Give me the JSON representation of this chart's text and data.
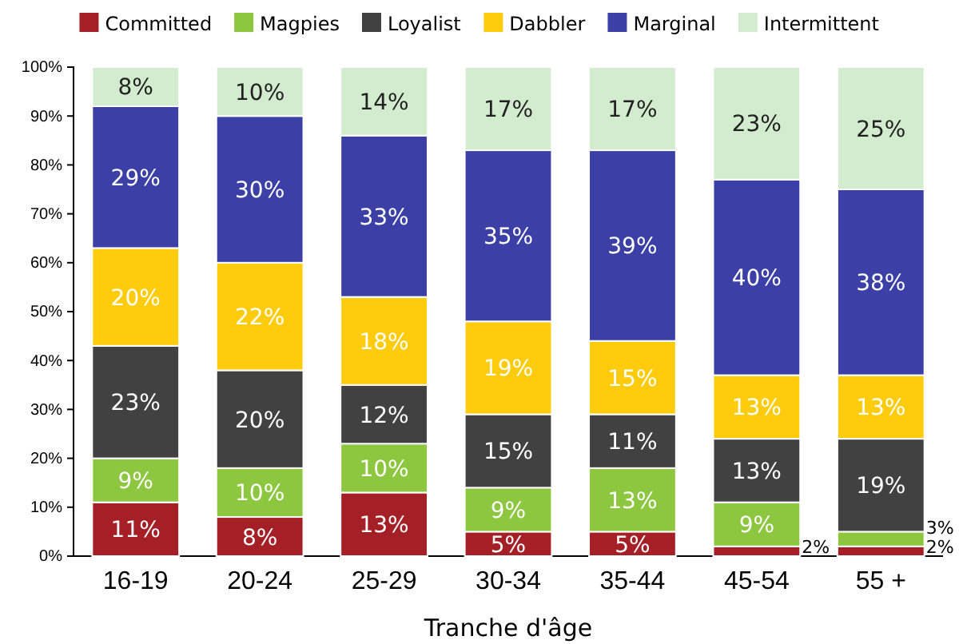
{
  "chart_data": {
    "type": "bar",
    "stacked": true,
    "xlabel": "Tranche d'âge",
    "categories": [
      "16-19",
      "20-24",
      "25-29",
      "30-34",
      "35-44",
      "45-54",
      "55 +"
    ],
    "ylim": [
      0,
      100
    ],
    "yticks": [
      {
        "value": 0,
        "label": "0%"
      },
      {
        "value": 10,
        "label": "10%"
      },
      {
        "value": 20,
        "label": "20%"
      },
      {
        "value": 30,
        "label": "30%"
      },
      {
        "value": 40,
        "label": "40%"
      },
      {
        "value": 50,
        "label": "50%"
      },
      {
        "value": 60,
        "label": "60%"
      },
      {
        "value": 70,
        "label": "70%"
      },
      {
        "value": 80,
        "label": "80%"
      },
      {
        "value": 90,
        "label": "90%"
      },
      {
        "value": 100,
        "label": "100%"
      }
    ],
    "legend": "top",
    "grid": false,
    "series": [
      {
        "name": "Committed",
        "color": "#a51f26",
        "values": [
          11,
          8,
          13,
          5,
          5,
          2,
          2
        ],
        "value_labels": [
          "11%",
          "8%",
          "13%",
          "5%",
          "5%",
          "2%",
          "2%"
        ]
      },
      {
        "name": "Magpies",
        "color": "#8dc63f",
        "values": [
          9,
          10,
          10,
          9,
          13,
          9,
          3
        ],
        "value_labels": [
          "9%",
          "10%",
          "10%",
          "9%",
          "13%",
          "9%",
          "3%"
        ]
      },
      {
        "name": "Loyalist",
        "color": "#414141",
        "values": [
          23,
          20,
          12,
          15,
          11,
          13,
          19
        ],
        "value_labels": [
          "23%",
          "20%",
          "12%",
          "15%",
          "11%",
          "13%",
          "19%"
        ]
      },
      {
        "name": "Dabbler",
        "color": "#ffcc0d",
        "values": [
          20,
          22,
          18,
          19,
          15,
          13,
          13
        ],
        "value_labels": [
          "20%",
          "22%",
          "18%",
          "19%",
          "15%",
          "13%",
          "13%"
        ]
      },
      {
        "name": "Marginal",
        "color": "#3b3fa6",
        "values": [
          29,
          30,
          33,
          35,
          39,
          40,
          38
        ],
        "value_labels": [
          "29%",
          "30%",
          "33%",
          "35%",
          "39%",
          "40%",
          "38%"
        ]
      },
      {
        "name": "Intermittent",
        "color": "#d3ebcf",
        "values": [
          8,
          10,
          14,
          17,
          17,
          23,
          25
        ],
        "value_labels": [
          "8%",
          "10%",
          "14%",
          "17%",
          "17%",
          "23%",
          "25%"
        ]
      }
    ]
  }
}
